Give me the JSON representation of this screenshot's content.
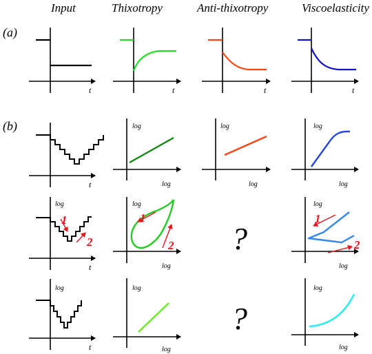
{
  "headers": {
    "input": "Input",
    "thixotropy": "Thixotropy",
    "anti_thixotropy": "Anti-thixotropy",
    "viscoelasticity": "Viscoelasticity"
  },
  "row_labels": {
    "a": "(a)",
    "b": "(b)"
  },
  "axis_labels": {
    "time": "t",
    "log": "log"
  },
  "annotations": {
    "one": "1",
    "two": "2",
    "unknown": "?"
  },
  "colors": {
    "axis": "#000000",
    "input": "#000000",
    "thixotropy_a": "#22dd22",
    "thixotropy_b1": "#118811",
    "thixotropy_b2": "#22cc22",
    "thixotropy_b3": "#66ee22",
    "anti_thixotropy": "#ff4411",
    "viscoelasticity_a": "#1111cc",
    "viscoelasticity_b1": "#2244dd",
    "viscoelasticity_b2": "#3388ee",
    "viscoelasticity_b3": "#22eeee",
    "arrows": "#e8141c"
  }
}
